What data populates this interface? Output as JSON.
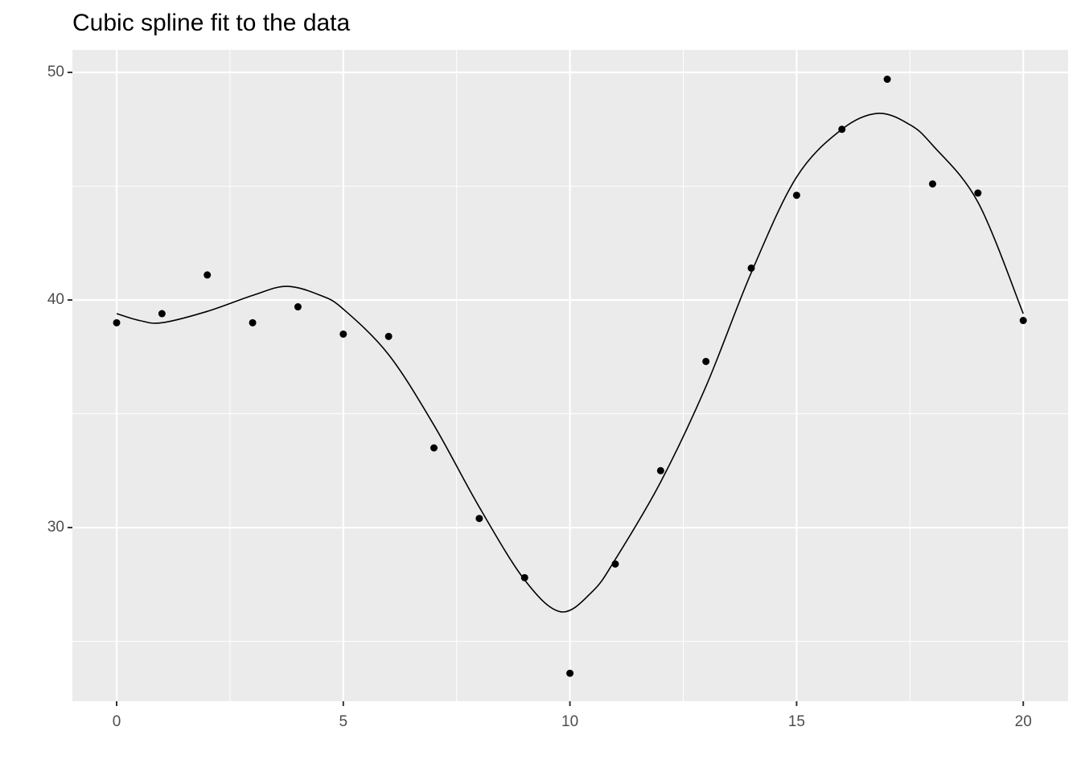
{
  "chart_data": {
    "type": "scatter",
    "title": "Cubic spline fit to the data",
    "x": [
      0,
      1,
      2,
      3,
      4,
      5,
      6,
      7,
      8,
      9,
      10,
      11,
      12,
      13,
      14,
      15,
      16,
      17,
      18,
      19,
      20
    ],
    "values": [
      39.0,
      39.4,
      41.1,
      39.0,
      39.7,
      38.5,
      38.4,
      33.5,
      30.4,
      27.8,
      23.6,
      28.4,
      32.5,
      37.3,
      41.4,
      44.6,
      47.5,
      49.7,
      45.1,
      44.7,
      39.1
    ],
    "color": "#000000",
    "fit": {
      "type": "line",
      "color": "#000000",
      "x": [
        0,
        0.5,
        1,
        2,
        3,
        3.75,
        4.5,
        5,
        6,
        7,
        8,
        9,
        9.8,
        10.5,
        11,
        12,
        13,
        14,
        15,
        16,
        16.8,
        17.5,
        18,
        19,
        20
      ],
      "values": [
        39.4,
        39.1,
        39.0,
        39.5,
        40.2,
        40.6,
        40.2,
        39.6,
        37.6,
        34.5,
        30.9,
        27.7,
        26.3,
        27.2,
        28.6,
        32.0,
        36.2,
        41.2,
        45.4,
        47.5,
        48.2,
        47.7,
        46.8,
        44.3,
        39.4
      ]
    },
    "xlim": [
      -0.976,
      20.99
    ],
    "ylim": [
      22.37,
      50.99
    ],
    "xticks": [
      0,
      5,
      10,
      15,
      20
    ],
    "yticks": [
      30,
      40,
      50
    ],
    "minor_xticks": [
      2.5,
      7.5,
      12.5,
      17.5
    ],
    "minor_yticks": [
      25,
      35,
      45
    ],
    "grid": true,
    "panel_color": "#ebebeb",
    "grid_color": "#ffffff"
  }
}
